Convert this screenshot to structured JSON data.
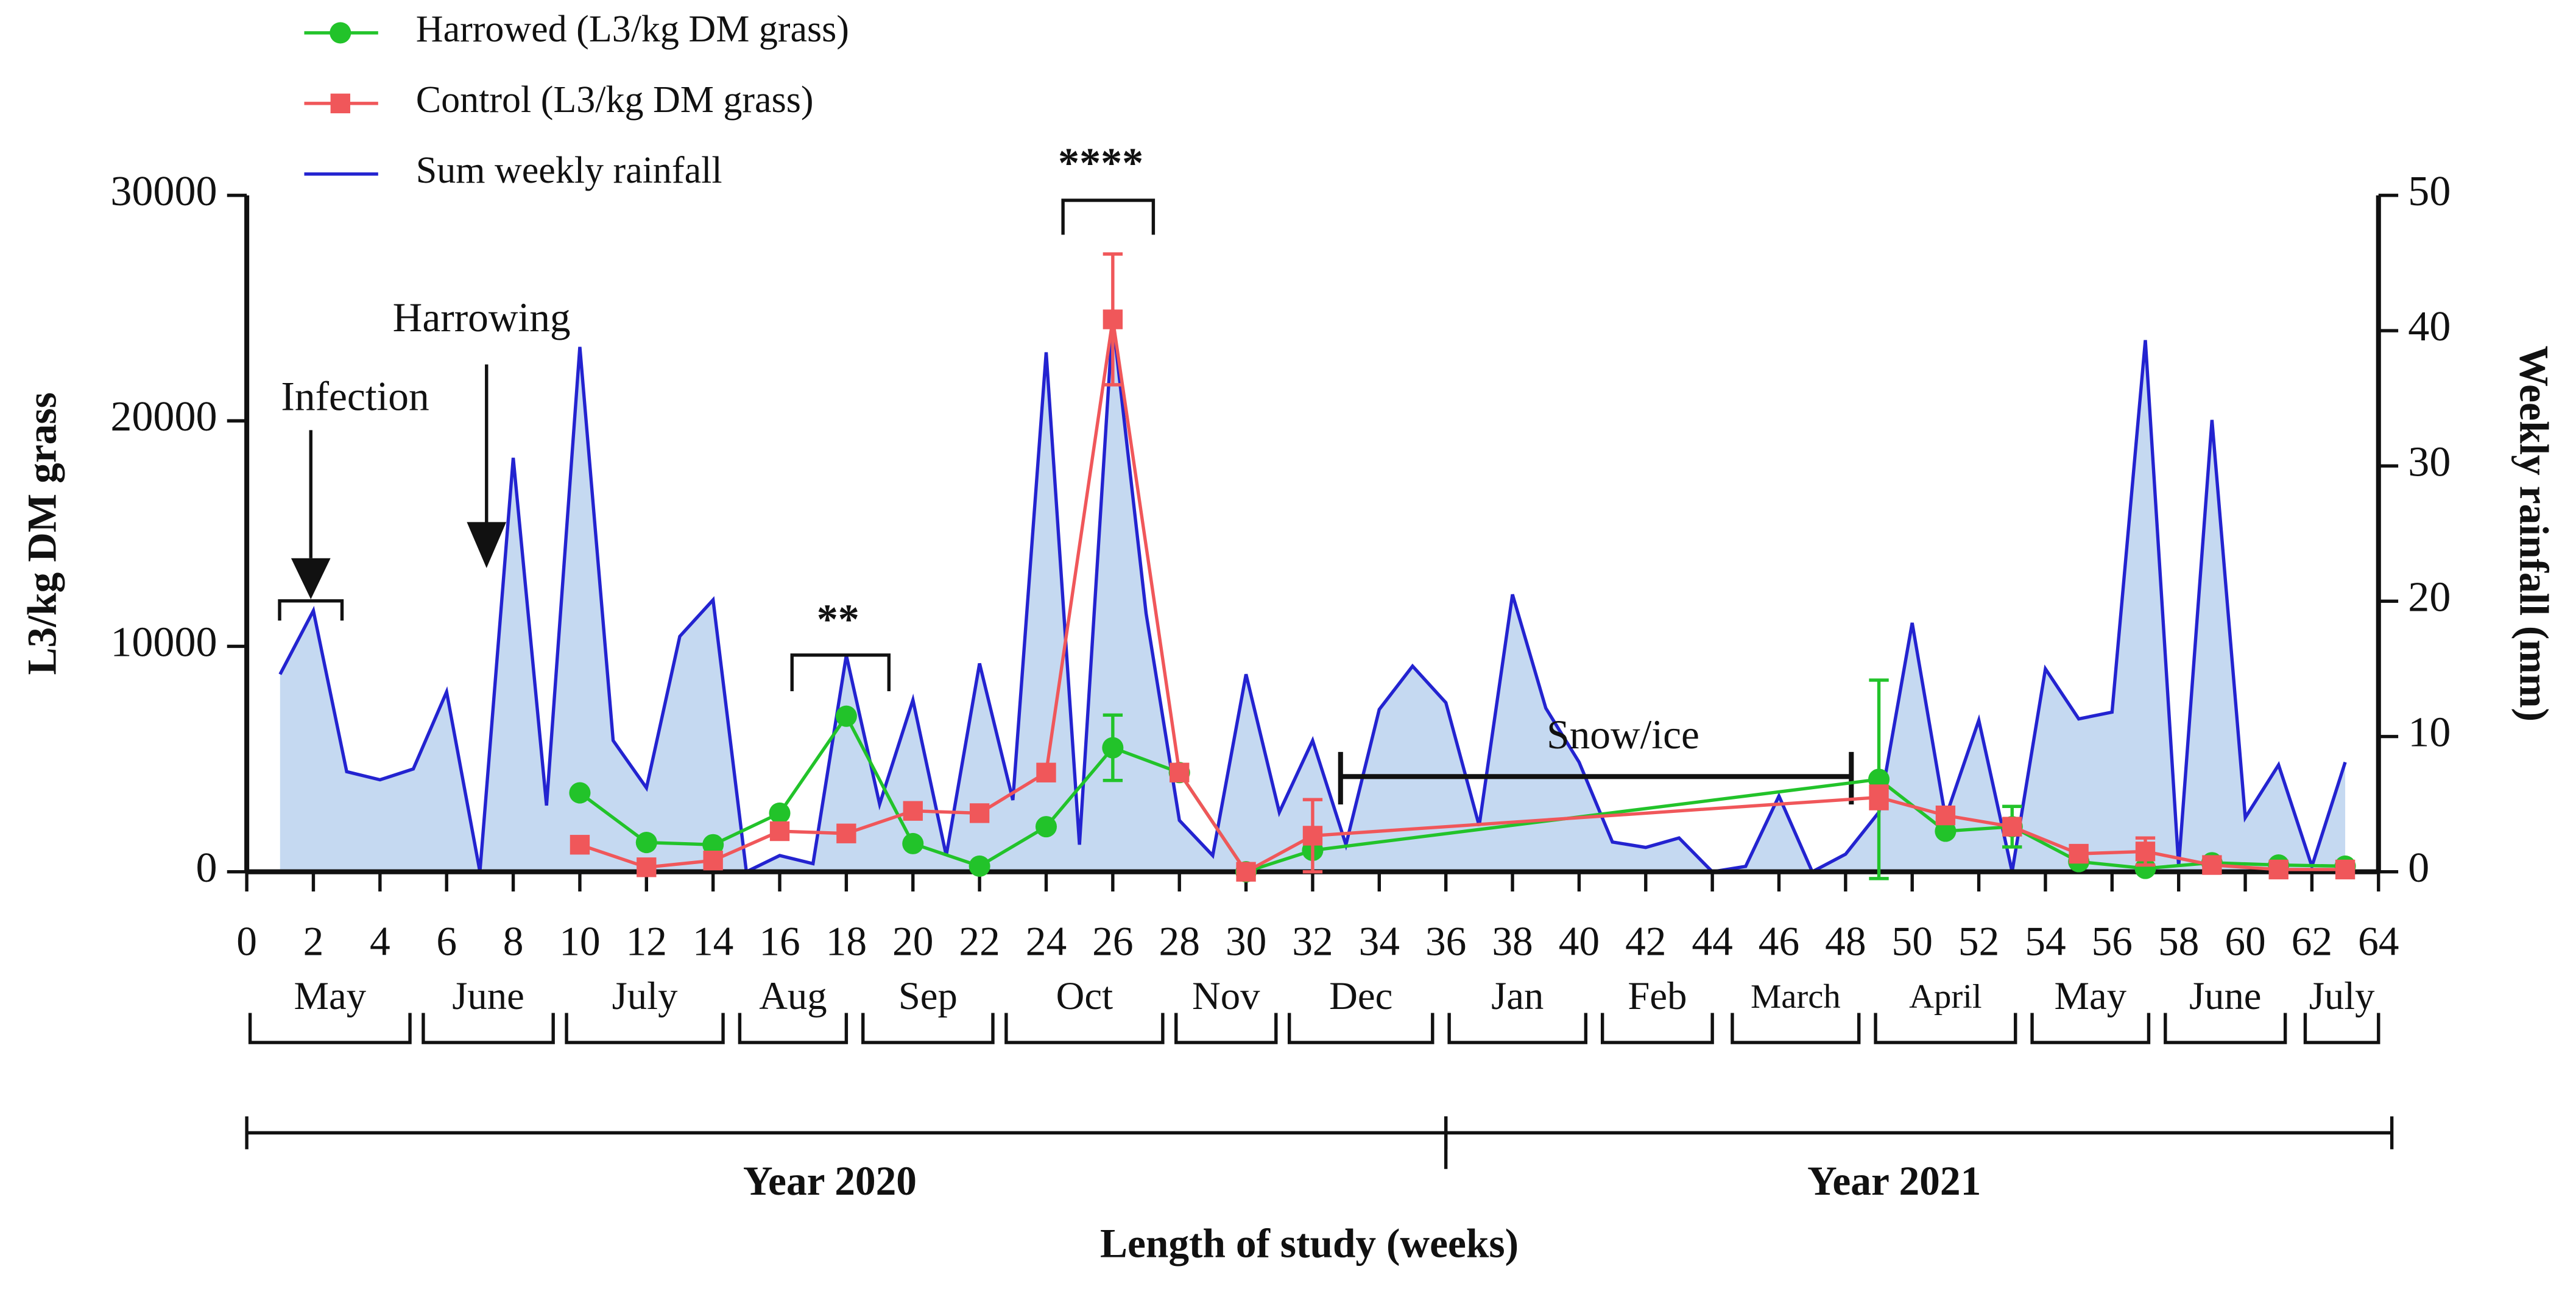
{
  "chart_data": {
    "type": "line",
    "ylabel": "L3/kg DM grass",
    "y2label": "Weekly rainfall (mm)",
    "xlabel": "Length of study (weeks)",
    "xlim": [
      0,
      64
    ],
    "xticks": [
      0,
      2,
      4,
      6,
      8,
      10,
      12,
      14,
      16,
      18,
      20,
      22,
      24,
      26,
      28,
      30,
      32,
      34,
      36,
      38,
      40,
      42,
      44,
      46,
      48,
      50,
      52,
      54,
      56,
      58,
      60,
      62,
      64
    ],
    "ylim": [
      0,
      30000
    ],
    "yticks": [
      0,
      10000,
      20000,
      30000
    ],
    "y2lim": [
      0,
      50
    ],
    "y2ticks": [
      0,
      10,
      20,
      30,
      40,
      50
    ],
    "legend": "top-left",
    "series": [
      {
        "name": "Harrowed (L3/kg DM grass)",
        "color": "#22c32a",
        "marker": "circle",
        "x": [
          10,
          12,
          14,
          16,
          18,
          20,
          22,
          24,
          26,
          28,
          30,
          32,
          49,
          51,
          53,
          55,
          57,
          59,
          61,
          63
        ],
        "values": [
          3500,
          1300,
          1200,
          2600,
          6900,
          1250,
          250,
          2000,
          5500,
          4400,
          0,
          950,
          4100,
          1800,
          2000,
          450,
          150,
          400,
          300,
          250
        ],
        "errors": [
          null,
          null,
          null,
          null,
          null,
          null,
          null,
          null,
          1450,
          null,
          null,
          null,
          4400,
          null,
          900,
          null,
          null,
          null,
          null,
          null
        ]
      },
      {
        "name": "Control (L3/kg DM grass)",
        "color": "#f0575a",
        "marker": "square",
        "x": [
          10,
          12,
          14,
          16,
          18,
          20,
          22,
          24,
          26,
          28,
          30,
          32,
          49,
          51,
          53,
          55,
          57,
          59,
          61,
          63
        ],
        "values": [
          1200,
          200,
          500,
          1800,
          1700,
          2700,
          2600,
          4400,
          24500,
          4400,
          0,
          1600,
          3300,
          2500,
          2000,
          800,
          900,
          300,
          100,
          100
        ],
        "errors": [
          null,
          null,
          null,
          null,
          null,
          null,
          null,
          null,
          2900,
          null,
          null,
          1600,
          500,
          null,
          null,
          null,
          600,
          null,
          null,
          null
        ]
      },
      {
        "name": "Sum weekly rainfall",
        "color": "#2323d0",
        "fill": "#c5d9f1",
        "axis": "y2",
        "x": [
          1,
          2,
          3,
          4,
          5,
          6,
          7,
          8,
          9,
          10,
          11,
          12,
          13,
          14,
          15,
          16,
          17,
          18,
          19,
          20,
          21,
          22,
          23,
          24,
          25,
          26,
          27,
          28,
          29,
          30,
          31,
          32,
          33,
          34,
          35,
          36,
          37,
          38,
          39,
          40,
          41,
          42,
          43,
          44,
          45,
          46,
          47,
          48,
          49,
          50,
          51,
          52,
          53,
          54,
          55,
          56,
          57,
          58,
          59,
          60,
          61,
          62,
          63
        ],
        "values": [
          14.6,
          19.3,
          7.4,
          6.8,
          7.6,
          13.3,
          0,
          30.6,
          4.9,
          38.8,
          9.7,
          6.2,
          17.4,
          20.1,
          0,
          1.2,
          0.6,
          16,
          5,
          12.7,
          1.2,
          15.4,
          5.3,
          38.4,
          2,
          40.8,
          19.1,
          3.8,
          1.2,
          14.6,
          4.4,
          9.7,
          2,
          12,
          15.2,
          12.5,
          3.4,
          20.5,
          12.1,
          8.1,
          2.2,
          1.8,
          2.5,
          0,
          0.4,
          5.6,
          0,
          1.3,
          4.4,
          18.4,
          4,
          11.2,
          0,
          15,
          11.3,
          11.8,
          39.3,
          0.4,
          33.4,
          4,
          7.9,
          0.4,
          8.1
        ]
      }
    ],
    "annotations": [
      "Infection",
      "Harrowing",
      "**",
      "****",
      "Snow/ice"
    ],
    "months": [
      {
        "label": "May",
        "start": 0.1,
        "end": 4.9
      },
      {
        "label": "June",
        "start": 5.3,
        "end": 9.2
      },
      {
        "label": "July",
        "start": 9.6,
        "end": 14.3
      },
      {
        "label": "Aug",
        "start": 14.8,
        "end": 18
      },
      {
        "label": "Sep",
        "start": 18.5,
        "end": 22.4
      },
      {
        "label": "Oct",
        "start": 22.8,
        "end": 27.5
      },
      {
        "label": "Nov",
        "start": 27.9,
        "end": 30.9
      },
      {
        "label": "Dec",
        "start": 31.3,
        "end": 35.6
      },
      {
        "label": "Jan",
        "start": 36.1,
        "end": 40.2
      },
      {
        "label": "Feb",
        "start": 40.7,
        "end": 44
      },
      {
        "label": "March",
        "start": 44.6,
        "end": 48.4
      },
      {
        "label": "April",
        "start": 48.9,
        "end": 53.1
      },
      {
        "label": "May",
        "start": 53.6,
        "end": 57.1
      },
      {
        "label": "June",
        "start": 57.6,
        "end": 61.2
      },
      {
        "label": "July",
        "start": 61.8,
        "end": 64
      }
    ],
    "years": [
      {
        "label": "Year 2020",
        "start": 0,
        "end": 36
      },
      {
        "label": "Year 2021",
        "start": 36,
        "end": 64.4
      }
    ]
  }
}
